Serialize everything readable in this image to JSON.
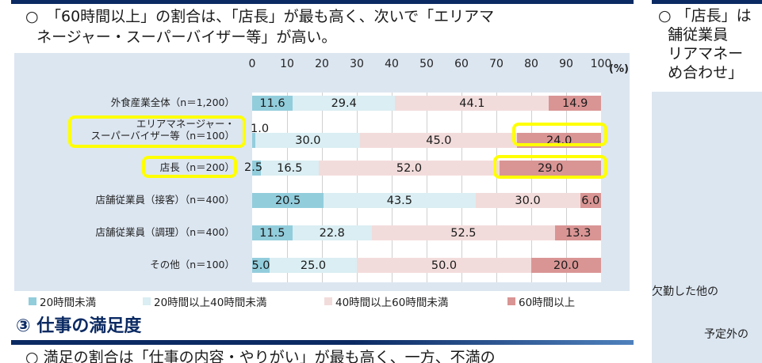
{
  "lead_text": {
    "bullet": "○",
    "line1": "「60時間以上」の割合は、「店長」が最も高く、次いで「エリアマ",
    "line2": "ネージャー・スーパーバイザー等」が高い。"
  },
  "chart_data": {
    "type": "bar",
    "orientation": "horizontal",
    "stacked": true,
    "title": "",
    "xlabel": "",
    "ylabel": "",
    "x_unit": "(%)",
    "xlim": [
      0,
      100
    ],
    "x_ticks": [
      "0",
      "10",
      "20",
      "30",
      "40",
      "50",
      "60",
      "70",
      "80",
      "90",
      "100"
    ],
    "grid": true,
    "legend_position": "bottom",
    "categories": [
      "外食産業全体（n＝1,200）",
      "エリアマネージャー・\nスーパーバイザー等（n＝100）",
      "店長（n＝200）",
      "店舗従業員（接客）（n＝400）",
      "店舗従業員（調理）（n＝400）",
      "その他（n＝100）"
    ],
    "series": [
      {
        "name": "20時間未満",
        "color": "#92cddc",
        "values": [
          11.6,
          1.0,
          2.5,
          20.5,
          11.5,
          5.0
        ]
      },
      {
        "name": "20時間以上40時間未満",
        "color": "#daeef3",
        "values": [
          29.4,
          30.0,
          16.5,
          43.5,
          22.8,
          25.0
        ]
      },
      {
        "name": "40時間以上60時間未満",
        "color": "#f2dcdb",
        "values": [
          44.1,
          45.0,
          52.0,
          30.0,
          52.5,
          50.0
        ]
      },
      {
        "name": "60時間以上",
        "color": "#d99594",
        "values": [
          14.9,
          24.0,
          29.0,
          6.0,
          13.3,
          20.0
        ]
      }
    ],
    "value_labels": [
      [
        "11.6",
        "29.4",
        "44.1",
        "14.9"
      ],
      [
        "1.0",
        "30.0",
        "45.0",
        "24.0"
      ],
      [
        "2.5",
        "16.5",
        "52.0",
        "29.0"
      ],
      [
        "20.5",
        "43.5",
        "30.0",
        "6.0"
      ],
      [
        "11.5",
        "22.8",
        "52.5",
        "13.3"
      ],
      [
        "5.0",
        "25.0",
        "50.0",
        "20.0"
      ]
    ],
    "annotations": [
      "Yellow highlight: エリアマネージャー・スーパーバイザー等 label and its 60時間以上 bar (24.0)",
      "Yellow highlight: 店長 label and its 60時間以上 bar (29.0)"
    ]
  },
  "section": {
    "number": "③",
    "title": "仕事の満足度",
    "lead": "○ 満足の割合は「仕事の内容・やりがい」が最も高く、一方、不満の"
  },
  "right_column": {
    "line1": "○ 「店長」は",
    "line2": "  舗従業員",
    "line3": "  リアマネー",
    "line4": "  め合わせ」",
    "label1": "欠勤した他の",
    "label2": "予定外の"
  },
  "colors": {
    "navy": "#0b2a63",
    "panel": "#dce6f1",
    "highlight": "#ffff00"
  }
}
